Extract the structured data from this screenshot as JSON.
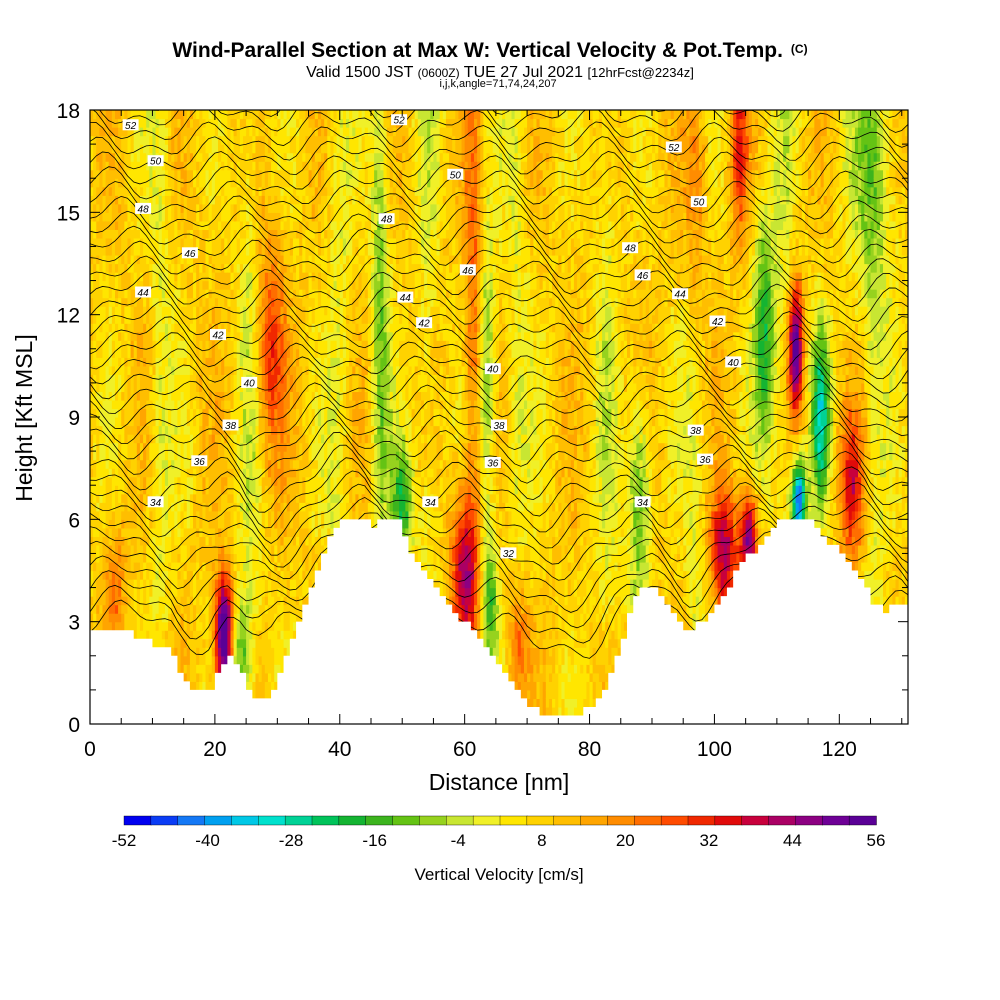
{
  "chart_data": {
    "type": "heatmap",
    "title": "Wind-Parallel Section at Max W: Vertical Velocity & Pot.Temp.",
    "title_mark": "(C)",
    "subtitle_parts": [
      "Valid 1500 JST",
      "(0600Z)",
      "TUE 27 Jul 2021",
      "[12hrFcst@2234z]"
    ],
    "subtitle2": "i,j,k,angle=71,74,24,207",
    "xlabel": "Distance [nm]",
    "ylabel": "Height [Kft MSL]",
    "xlim": [
      0,
      131
    ],
    "ylim": [
      0,
      18
    ],
    "x_ticks": [
      "0",
      "20",
      "40",
      "60",
      "80",
      "100",
      "120"
    ],
    "y_ticks": [
      "0",
      "3",
      "6",
      "9",
      "12",
      "15",
      "18"
    ],
    "x_tick_values": [
      0,
      20,
      40,
      60,
      80,
      100,
      120
    ],
    "y_tick_values": [
      0,
      3,
      6,
      9,
      12,
      15,
      18
    ],
    "colorbar": {
      "label": "Vertical Velocity [cm/s]",
      "range": [
        -52,
        56
      ],
      "ticks": [
        "-52",
        "-40",
        "-28",
        "-16",
        "-4",
        "8",
        "20",
        "32",
        "44",
        "56"
      ],
      "tick_values": [
        -52,
        -40,
        -28,
        -16,
        -4,
        8,
        20,
        32,
        44,
        56
      ],
      "colors": [
        "#0000f0",
        "#0a3cf5",
        "#1478f5",
        "#00a0f0",
        "#00c8e6",
        "#00e1cd",
        "#00d296",
        "#00c35a",
        "#14b432",
        "#3cb41e",
        "#64c314",
        "#96d21e",
        "#c8e632",
        "#f0f028",
        "#ffe600",
        "#ffd200",
        "#ffbe00",
        "#ffa500",
        "#ff8c00",
        "#ff6e00",
        "#ff4b00",
        "#f02800",
        "#e10a0a",
        "#c8003c",
        "#aa0064",
        "#8c0082",
        "#6e0096",
        "#5a0096"
      ]
    },
    "terrain_kft": [
      [
        0,
        2.75
      ],
      [
        5,
        2.75
      ],
      [
        8,
        2.5
      ],
      [
        11,
        2.25
      ],
      [
        13,
        2
      ],
      [
        14,
        1.5
      ],
      [
        16,
        1.1
      ],
      [
        19,
        1.1
      ],
      [
        20,
        1.5
      ],
      [
        22,
        2
      ],
      [
        24,
        1.5
      ],
      [
        25,
        1
      ],
      [
        27,
        0.7
      ],
      [
        29,
        0.9
      ],
      [
        30,
        1.5
      ],
      [
        31,
        2
      ],
      [
        33,
        3
      ],
      [
        35,
        4
      ],
      [
        37,
        5
      ],
      [
        39,
        5.75
      ],
      [
        41,
        6
      ],
      [
        44,
        6
      ],
      [
        45,
        5.75
      ],
      [
        46,
        6
      ],
      [
        49,
        6
      ],
      [
        50,
        5.5
      ],
      [
        51,
        5
      ],
      [
        53,
        4.5
      ],
      [
        55,
        4
      ],
      [
        57,
        3.5
      ],
      [
        59,
        3
      ],
      [
        61,
        2.75
      ],
      [
        62,
        2.5
      ],
      [
        64,
        2
      ],
      [
        66,
        1.5
      ],
      [
        68,
        1
      ],
      [
        70,
        0.5
      ],
      [
        72,
        0.3
      ],
      [
        77,
        0.3
      ],
      [
        80,
        0.5
      ],
      [
        82,
        1
      ],
      [
        84,
        2
      ],
      [
        85,
        2.5
      ],
      [
        86,
        3.25
      ],
      [
        87,
        3.75
      ],
      [
        89,
        4
      ],
      [
        90,
        4.1
      ],
      [
        92,
        3.5
      ],
      [
        94,
        3
      ],
      [
        95,
        2.75
      ],
      [
        96,
        2.75
      ],
      [
        98,
        3
      ],
      [
        100,
        3.5
      ],
      [
        102,
        4
      ],
      [
        104,
        4.75
      ],
      [
        106,
        5
      ],
      [
        107,
        5.25
      ],
      [
        108,
        5.5
      ],
      [
        109,
        5.75
      ],
      [
        110,
        6
      ],
      [
        114,
        6
      ],
      [
        116,
        5.75
      ],
      [
        117,
        5.5
      ],
      [
        118,
        5.25
      ],
      [
        120,
        5
      ],
      [
        121,
        4.75
      ],
      [
        122,
        4.5
      ],
      [
        124,
        4
      ],
      [
        125,
        3.5
      ],
      [
        127,
        3.25
      ],
      [
        129,
        3.5
      ],
      [
        131,
        3.5
      ]
    ],
    "theta_contours": [
      {
        "value": 32,
        "label": "32",
        "label_x": 67,
        "label_y": 5.0
      },
      {
        "value": 34,
        "label": "34",
        "label_x": 10.5,
        "label_y": 6.5
      },
      {
        "value": 34,
        "label": "34",
        "label_x": 54.5,
        "label_y": 6.5
      },
      {
        "value": 34,
        "label": "34",
        "label_x": 88.5,
        "label_y": 6.5
      },
      {
        "value": 36,
        "label": "36",
        "label_x": 64.5,
        "label_y": 7.65
      },
      {
        "value": 36,
        "label": "36",
        "label_x": 98.5,
        "label_y": 7.75
      },
      {
        "value": 36,
        "label": "36",
        "label_x": 17.5,
        "label_y": 7.7
      },
      {
        "value": 38,
        "label": "38",
        "label_x": 22.5,
        "label_y": 8.75
      },
      {
        "value": 38,
        "label": "38",
        "label_x": 65.5,
        "label_y": 8.75
      },
      {
        "value": 38,
        "label": "38",
        "label_x": 97,
        "label_y": 8.6
      },
      {
        "value": 40,
        "label": "40",
        "label_x": 25.5,
        "label_y": 10.0
      },
      {
        "value": 40,
        "label": "40",
        "label_x": 64.5,
        "label_y": 10.4
      },
      {
        "value": 40,
        "label": "40",
        "label_x": 103,
        "label_y": 10.6
      },
      {
        "value": 42,
        "label": "42",
        "label_x": 20.5,
        "label_y": 11.4
      },
      {
        "value": 42,
        "label": "42",
        "label_x": 53.5,
        "label_y": 11.75
      },
      {
        "value": 42,
        "label": "42",
        "label_x": 100.5,
        "label_y": 11.8
      },
      {
        "value": 44,
        "label": "44",
        "label_x": 8.5,
        "label_y": 12.65
      },
      {
        "value": 44,
        "label": "44",
        "label_x": 50.5,
        "label_y": 12.5
      },
      {
        "value": 44,
        "label": "44",
        "label_x": 94.5,
        "label_y": 12.6
      },
      {
        "value": 46,
        "label": "46",
        "label_x": 16,
        "label_y": 13.8
      },
      {
        "value": 46,
        "label": "46",
        "label_x": 60.5,
        "label_y": 13.3
      },
      {
        "value": 46,
        "label": "46",
        "label_x": 88.5,
        "label_y": 13.15
      },
      {
        "value": 48,
        "label": "48",
        "label_x": 8.5,
        "label_y": 15.1
      },
      {
        "value": 48,
        "label": "48",
        "label_x": 47.5,
        "label_y": 14.8
      },
      {
        "value": 48,
        "label": "48",
        "label_x": 86.5,
        "label_y": 13.95
      },
      {
        "value": 50,
        "label": "50",
        "label_x": 10.5,
        "label_y": 16.5
      },
      {
        "value": 50,
        "label": "50",
        "label_x": 58.5,
        "label_y": 16.1
      },
      {
        "value": 50,
        "label": "50",
        "label_x": 97.5,
        "label_y": 15.3
      },
      {
        "value": 52,
        "label": "52",
        "label_x": 6.5,
        "label_y": 17.55
      },
      {
        "value": 52,
        "label": "52",
        "label_x": 49.5,
        "label_y": 17.7
      },
      {
        "value": 52,
        "label": "52",
        "label_x": 93.5,
        "label_y": 16.9
      }
    ],
    "w_features": [
      {
        "x": 21.5,
        "y": 2.6,
        "w": 60,
        "sx": 1.0,
        "sy": 1.2
      },
      {
        "x": 29,
        "y": 11.0,
        "w": 22,
        "sx": 1.5,
        "sy": 2.2
      },
      {
        "x": 4,
        "y": 4.0,
        "w": 14,
        "sx": 1.2,
        "sy": 1.4
      },
      {
        "x": 24,
        "y": 2.0,
        "w": -22,
        "sx": 1.4,
        "sy": 1.2
      },
      {
        "x": 46.5,
        "y": 12.0,
        "w": -18,
        "sx": 1.0,
        "sy": 5.5
      },
      {
        "x": 50,
        "y": 6.5,
        "w": -26,
        "sx": 1.2,
        "sy": 1.2
      },
      {
        "x": 60,
        "y": 4.5,
        "w": 34,
        "sx": 1.5,
        "sy": 1.6
      },
      {
        "x": 61.5,
        "y": 12.0,
        "w": 18,
        "sx": 1.0,
        "sy": 5.0
      },
      {
        "x": 63.5,
        "y": 10.5,
        "w": -20,
        "sx": 1.0,
        "sy": 3.0
      },
      {
        "x": 64,
        "y": 3.5,
        "w": -22,
        "sx": 1.0,
        "sy": 1.5
      },
      {
        "x": 68.5,
        "y": 2.5,
        "w": 18,
        "sx": 1.2,
        "sy": 1.5
      },
      {
        "x": 88,
        "y": 6.5,
        "w": -22,
        "sx": 1.3,
        "sy": 2.2
      },
      {
        "x": 97,
        "y": 16.0,
        "w": 18,
        "sx": 1.2,
        "sy": 3.0
      },
      {
        "x": 101.5,
        "y": 5.0,
        "w": 34,
        "sx": 1.5,
        "sy": 1.3
      },
      {
        "x": 105.5,
        "y": 5.4,
        "w": 40,
        "sx": 1.0,
        "sy": 1.0
      },
      {
        "x": 108,
        "y": 11.5,
        "w": -26,
        "sx": 1.2,
        "sy": 2.5
      },
      {
        "x": 113.5,
        "y": 6.6,
        "w": -52,
        "sx": 0.8,
        "sy": 0.8
      },
      {
        "x": 113,
        "y": 11.0,
        "w": 50,
        "sx": 0.8,
        "sy": 1.3
      },
      {
        "x": 117,
        "y": 9.0,
        "w": -34,
        "sx": 1.0,
        "sy": 1.8
      },
      {
        "x": 122,
        "y": 7.0,
        "w": 26,
        "sx": 1.4,
        "sy": 1.5
      },
      {
        "x": 125,
        "y": 16.0,
        "w": -12,
        "sx": 3.0,
        "sy": 3.0
      },
      {
        "x": 104,
        "y": 17.0,
        "w": 22,
        "sx": 1.0,
        "sy": 2.0
      }
    ]
  }
}
